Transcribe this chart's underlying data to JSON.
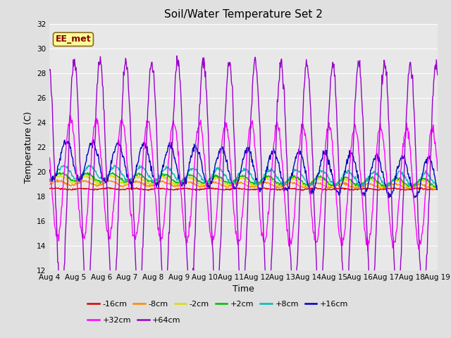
{
  "title": "Soil/Water Temperature Set 2",
  "xlabel": "Time",
  "ylabel": "Temperature (C)",
  "ylim": [
    12,
    32
  ],
  "yticks": [
    12,
    14,
    16,
    18,
    20,
    22,
    24,
    26,
    28,
    30,
    32
  ],
  "n_points": 720,
  "background_color": "#e0e0e0",
  "plot_bg_color": "#e8e8e8",
  "annotation_text": "EE_met",
  "annotation_bg": "#ffff99",
  "annotation_border": "#8b4513",
  "series": [
    {
      "label": "-16cm",
      "color": "#dd0000",
      "base": 18.6,
      "amp": 0.05,
      "phase": 0.0,
      "trend": 0.0,
      "noise": 0.03
    },
    {
      "label": "-8cm",
      "color": "#ff8800",
      "base": 19.1,
      "amp": 0.18,
      "phase": 0.1,
      "trend": -0.3,
      "noise": 0.05
    },
    {
      "label": "-2cm",
      "color": "#dddd00",
      "base": 19.4,
      "amp": 0.28,
      "phase": 0.15,
      "trend": -0.4,
      "noise": 0.06
    },
    {
      "label": "+2cm",
      "color": "#00bb00",
      "base": 19.6,
      "amp": 0.32,
      "phase": 0.2,
      "trend": -0.5,
      "noise": 0.06
    },
    {
      "label": "+8cm",
      "color": "#00bbbb",
      "base": 20.0,
      "amp": 0.55,
      "phase": 0.3,
      "trend": -0.7,
      "noise": 0.08
    },
    {
      "label": "+16cm",
      "color": "#0000bb",
      "base": 21.0,
      "amp": 1.6,
      "phase": 0.4,
      "trend": -1.5,
      "noise": 0.15
    },
    {
      "label": "+32cm",
      "color": "#ff00ff",
      "base": 19.5,
      "amp": 4.8,
      "phase": 0.55,
      "trend": -0.8,
      "noise": 0.2
    },
    {
      "label": "+64cm",
      "color": "#9900cc",
      "base": 19.5,
      "amp": 9.5,
      "phase": 0.7,
      "trend": -0.3,
      "noise": 0.3
    }
  ],
  "title_fontsize": 11,
  "tick_fontsize": 7.5,
  "label_fontsize": 9
}
